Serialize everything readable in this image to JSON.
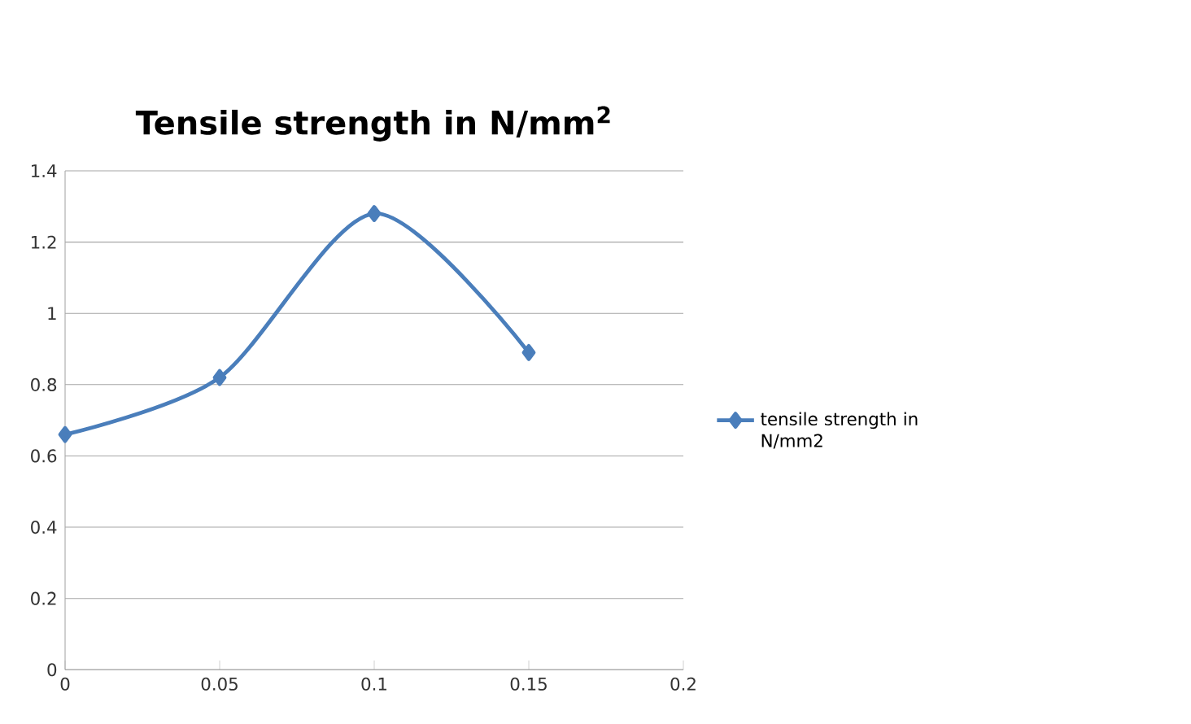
{
  "chart_data": {
    "type": "line",
    "title": "Tensile strength in N/mm$^{2}$",
    "x": [
      0,
      0.05,
      0.1,
      0.15
    ],
    "series": [
      {
        "name": "tensile strength in N/mm2",
        "color": "#4a7ebb",
        "values": [
          0.66,
          0.82,
          1.28,
          0.89
        ]
      }
    ],
    "xlim": [
      0,
      0.2
    ],
    "xticks": [
      0,
      0.05,
      0.1,
      0.15,
      0.2
    ],
    "ylim": [
      0,
      1.4
    ],
    "yticks": [
      0,
      0.2,
      0.4,
      0.6,
      0.8,
      1,
      1.2,
      1.4
    ],
    "grid": "y",
    "legend": "right",
    "marker": "diamond",
    "line_style": "solid"
  }
}
